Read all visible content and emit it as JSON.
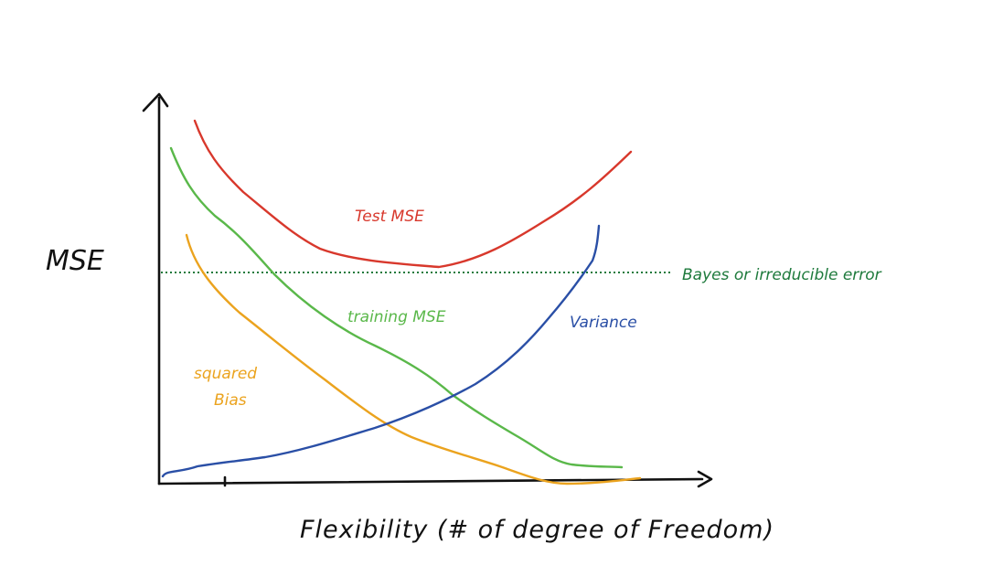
{
  "diagram": {
    "y_label": "MSE",
    "x_label": "Flexibility (# of degree of Freedom)",
    "reference_line": {
      "label": "Bayes or irreducible error",
      "color": "#1e7a3c",
      "style": "dotted"
    },
    "curves": [
      {
        "id": "test-mse",
        "label": "Test MSE",
        "color": "#d8382c"
      },
      {
        "id": "training-mse",
        "label": "training MSE",
        "color": "#5ab84a"
      },
      {
        "id": "squared-bias",
        "label_lines": [
          "squared",
          "Bias"
        ],
        "color": "#eba31e"
      },
      {
        "id": "variance",
        "label": "Variance",
        "color": "#2a4fa6"
      }
    ],
    "axis_color": "#111111"
  }
}
